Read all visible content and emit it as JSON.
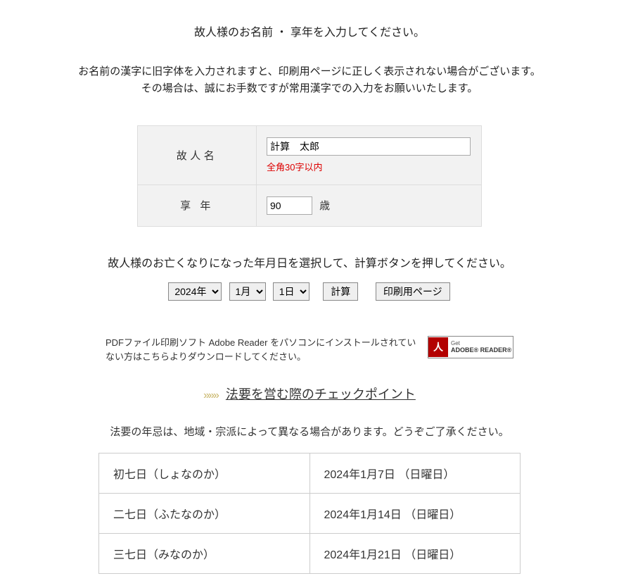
{
  "heading": "故人様のお名前 ・ 享年を入力してください。",
  "note_line1": "お名前の漢字に旧字体を入力されますと、印刷用ページに正しく表示されない場合がございます。",
  "note_line2": "その場合は、誠にお手数ですが常用漢字での入力をお願いいたします。",
  "form": {
    "name_label": "故人名",
    "name_value": "計算　太郎",
    "name_hint": "全角30字以内",
    "age_label": "享 年",
    "age_value": "90",
    "age_unit": "歳"
  },
  "date_prompt": "故人様のお亡くなりになった年月日を選択して、計算ボタンを押してください。",
  "date": {
    "year_options": [
      "2024年"
    ],
    "year_selected": "2024年",
    "month_options": [
      "1月"
    ],
    "month_selected": "1月",
    "day_options": [
      "1日"
    ],
    "day_selected": "1日"
  },
  "buttons": {
    "calc": "計算",
    "print": "印刷用ページ"
  },
  "pdf": {
    "text": "PDFファイル印刷ソフト Adobe Reader をパソコンにインストールされていない方はこちらよりダウンロードしてください。",
    "badge_get": "Get",
    "badge_name": "ADOBE® READER®"
  },
  "checklist": {
    "chevrons": "»»»",
    "label": "法要を営む際のチェックポイント"
  },
  "disclaimer": "法要の年忌は、地域・宗派によって異なる場合があります。どうぞご了承ください。",
  "results": [
    {
      "name": "初七日（しょなのか）",
      "date": "2024年1月7日 （日曜日）"
    },
    {
      "name": "二七日（ふたなのか）",
      "date": "2024年1月14日 （日曜日）"
    },
    {
      "name": "三七日（みなのか）",
      "date": "2024年1月21日 （日曜日）"
    }
  ]
}
